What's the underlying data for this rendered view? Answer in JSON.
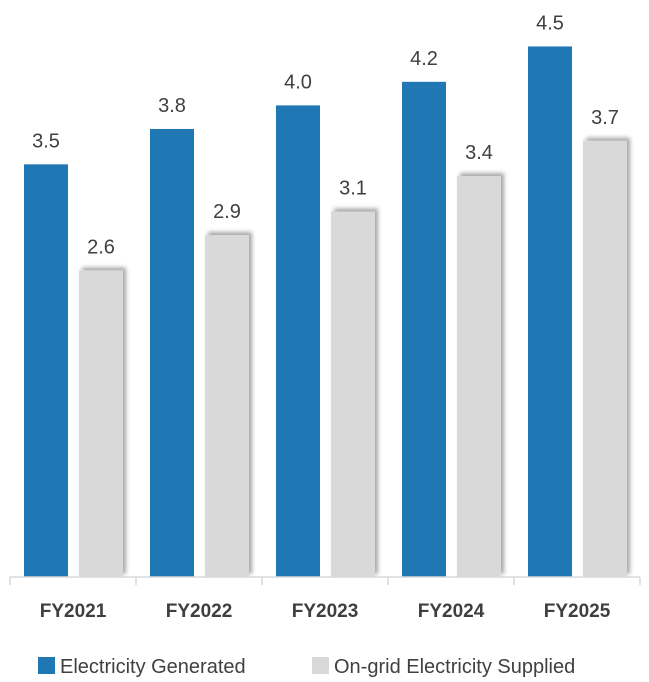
{
  "chart_data": {
    "type": "bar",
    "categories": [
      "FY2021",
      "FY2022",
      "FY2023",
      "FY2024",
      "FY2025"
    ],
    "series": [
      {
        "name": "Electricity Generated",
        "values": [
          3.5,
          3.8,
          4.0,
          4.2,
          4.5
        ],
        "color": "#1f77b4"
      },
      {
        "name": "On-grid Electricity Supplied",
        "values": [
          2.6,
          2.9,
          3.1,
          3.4,
          3.7
        ],
        "color": "#d9d9d9"
      }
    ],
    "value_labels": [
      [
        "3.5",
        "3.8",
        "4.0",
        "4.2",
        "4.5"
      ],
      [
        "2.6",
        "2.9",
        "3.1",
        "3.4",
        "3.7"
      ]
    ],
    "title": "",
    "xlabel": "",
    "ylabel": "",
    "ylim": [
      0,
      4.6
    ],
    "grid": false,
    "legend_position": "bottom"
  }
}
